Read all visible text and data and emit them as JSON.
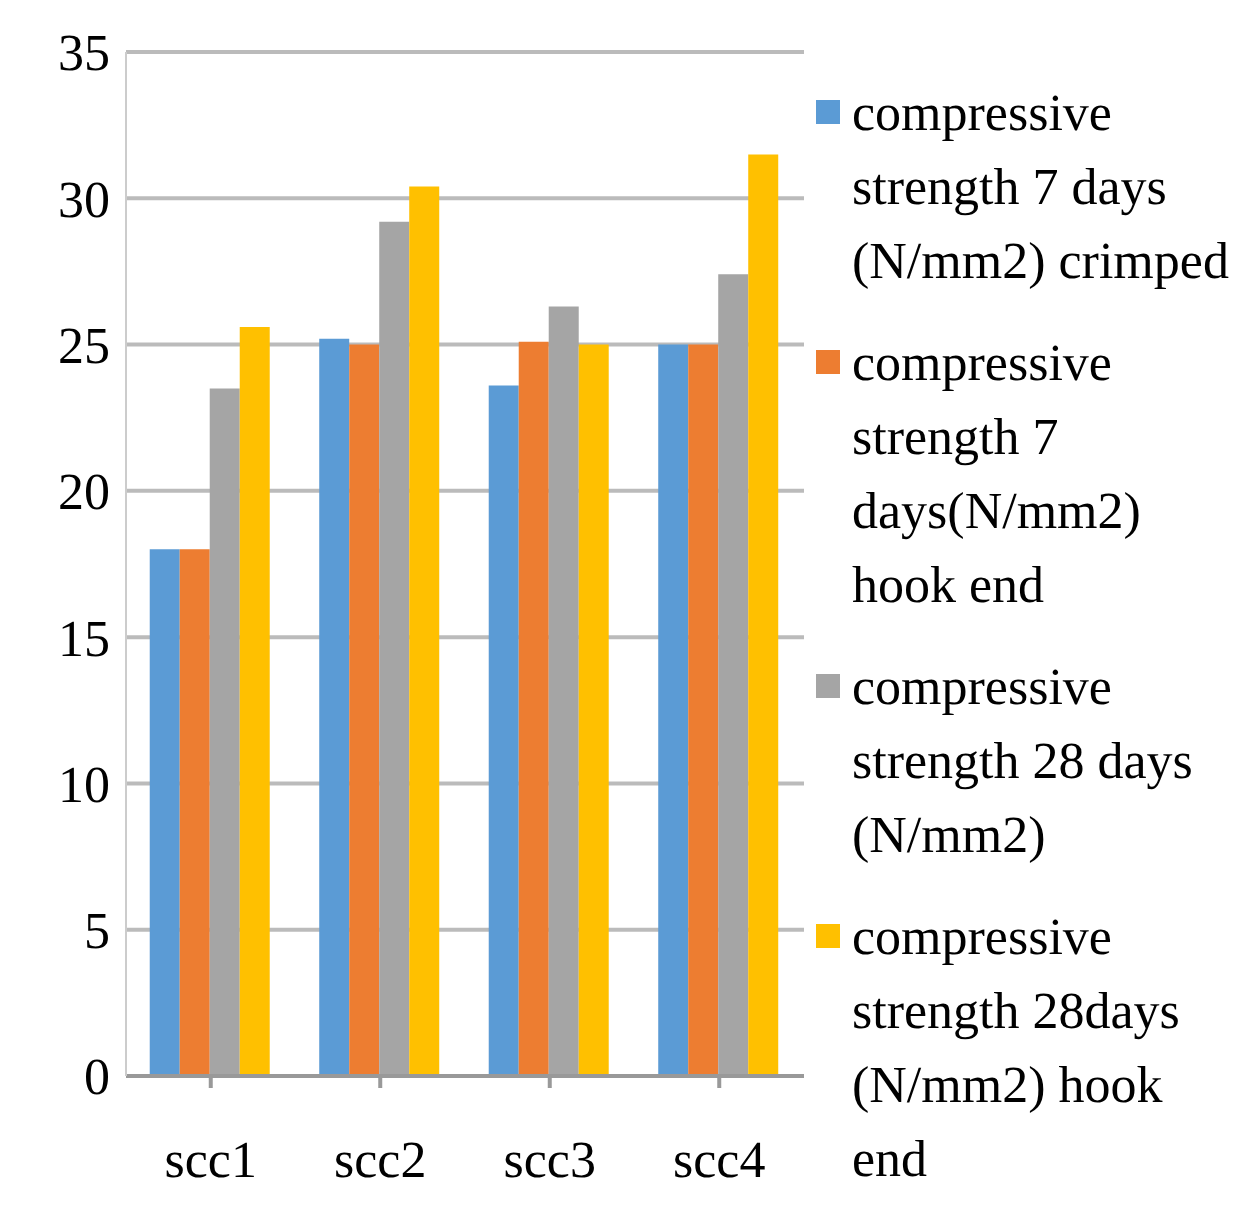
{
  "chart_data": {
    "type": "bar",
    "categories": [
      "scc1",
      "scc2",
      "scc3",
      "scc4"
    ],
    "series": [
      {
        "name": "compressive strength 7 days (N/mm2) crimped",
        "color": "#5b9bd5",
        "values": [
          18.0,
          25.2,
          23.6,
          25.0
        ]
      },
      {
        "name": "compressive strength 7 days(N/mm2) hook end",
        "color": "#ed7d31",
        "values": [
          18.0,
          25.0,
          25.1,
          25.0
        ]
      },
      {
        "name": "compressive strength 28 days (N/mm2)",
        "color": "#a5a5a5",
        "values": [
          23.5,
          29.2,
          26.3,
          27.4
        ]
      },
      {
        "name": "compressive strength 28days (N/mm2) hook end",
        "color": "#ffc000",
        "values": [
          25.6,
          30.4,
          25.0,
          31.5
        ]
      }
    ],
    "ylim": [
      0,
      35
    ],
    "yticks": [
      0,
      5,
      10,
      15,
      20,
      25,
      30,
      35
    ],
    "grid": "y",
    "legend": "right"
  }
}
